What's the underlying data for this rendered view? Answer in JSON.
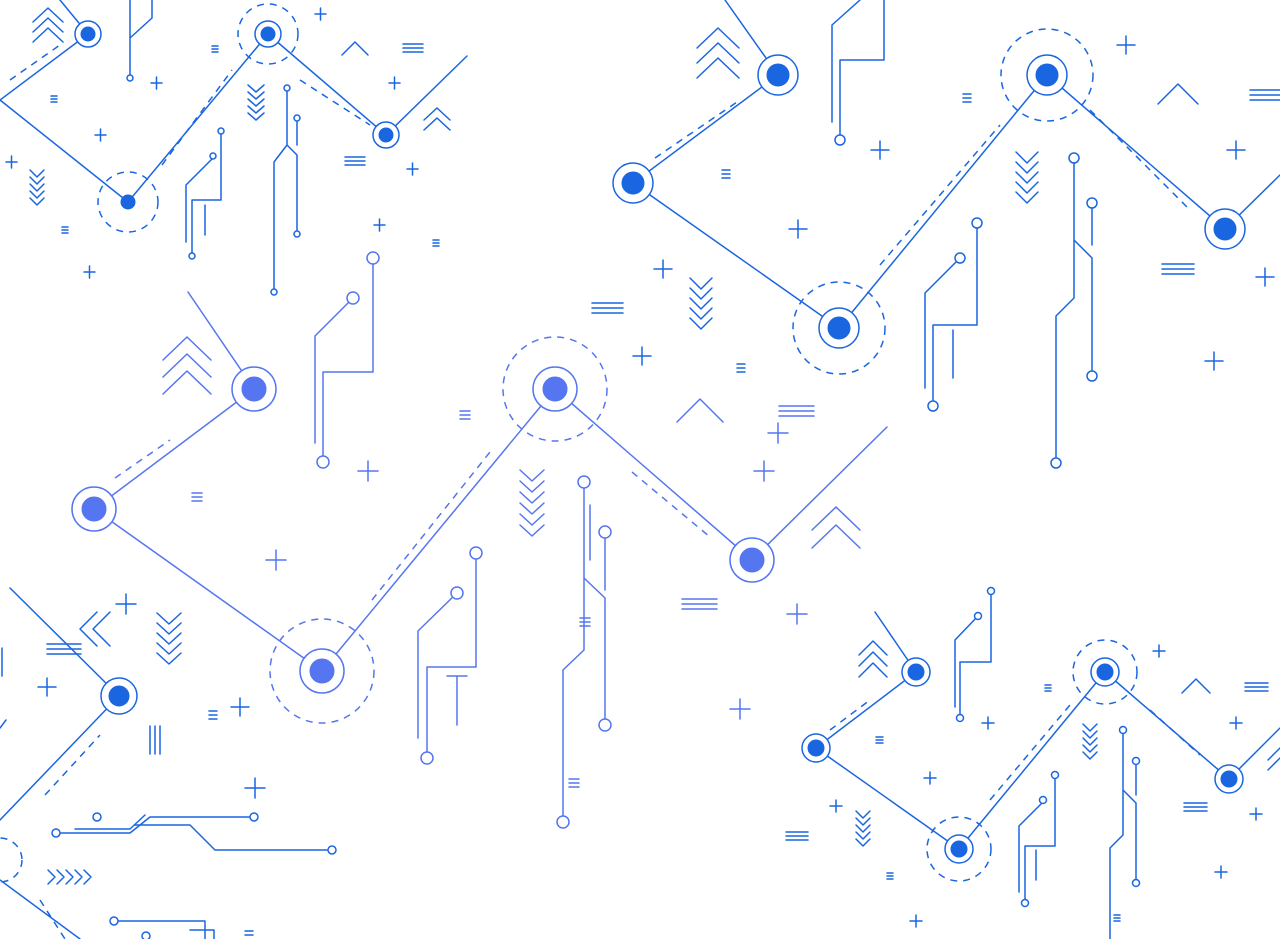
{
  "background": {
    "color": "#ffffff",
    "description_icon": "circuit-board-pattern",
    "colors": {
      "primary": "#1a66e0",
      "secondary": "#5576f0"
    }
  }
}
